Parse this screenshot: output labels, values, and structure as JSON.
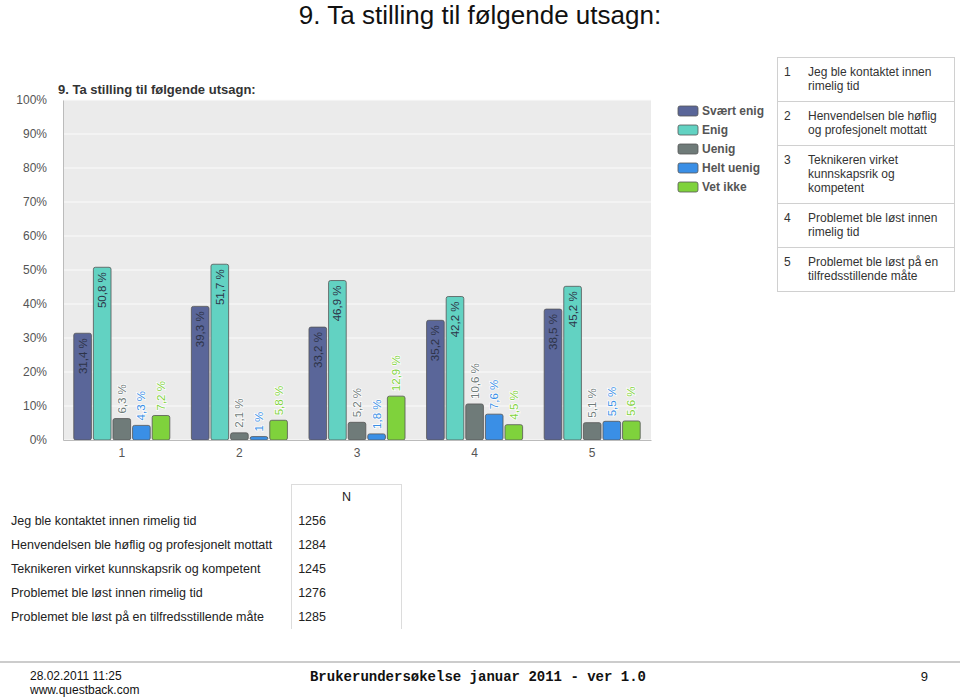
{
  "page": {
    "heading": "9. Ta stilling til følgende utsagn:",
    "items": [
      {
        "number": 1,
        "text": "Jeg ble kontaktet innen rimelig tid"
      },
      {
        "number": 2,
        "text": "Henvendelsen ble høflig og profesjonelt mottatt"
      },
      {
        "number": 3,
        "text": "Teknikeren virket kunnskapsrik og kompetent"
      },
      {
        "number": 4,
        "text": "Problemet ble løst innen rimelig tid"
      },
      {
        "number": 5,
        "text": "Problemet ble løst på en tilfredsstillende måte"
      }
    ],
    "n_table": {
      "header": "N",
      "rows": [
        [
          "Jeg ble kontaktet innen rimelig tid",
          1256
        ],
        [
          "Henvendelsen ble høflig og profesjonelt mottatt",
          1284
        ],
        [
          "Teknikeren virket kunnskapsrik og kompetent",
          1245
        ],
        [
          "Problemet ble løst innen rimelig tid",
          1276
        ],
        [
          "Problemet ble løst på en tilfredsstillende måte",
          1285
        ]
      ]
    },
    "footer": {
      "date": "28.02.2011 11:25",
      "site": "www.questback.com",
      "center": "Brukerundersøkelse januar 2011 - ver 1.0",
      "page_number": 9
    }
  },
  "chart_data": {
    "type": "bar",
    "title": "9. Ta stilling til følgende utsagn:",
    "categories": [
      "1",
      "2",
      "3",
      "4",
      "5"
    ],
    "series": [
      {
        "name": "Svært enig",
        "color": "#5a6699",
        "values": [
          31.4,
          39.3,
          33.2,
          35.2,
          38.5
        ],
        "value_labels": [
          "31,4 %",
          "39,3 %",
          "33,2 %",
          "35,2 %",
          "38,5 %"
        ]
      },
      {
        "name": "Enig",
        "color": "#62d2c2",
        "values": [
          50.8,
          51.7,
          46.9,
          42.2,
          45.2
        ],
        "value_labels": [
          "50,8 %",
          "51,7 %",
          "46,9 %",
          "42,2 %",
          "45,2 %"
        ]
      },
      {
        "name": "Uenig",
        "color": "#6f7b79",
        "values": [
          6.3,
          2.1,
          5.2,
          10.6,
          5.1
        ],
        "value_labels": [
          "6,3 %",
          "2,1 %",
          "5,2 %",
          "10,6 %",
          "5,1 %"
        ]
      },
      {
        "name": "Helt uenig",
        "color": "#3a8fe6",
        "values": [
          4.3,
          1,
          1.8,
          7.6,
          5.5
        ],
        "value_labels": [
          "4,3 %",
          "1 %",
          "1,8 %",
          "7,6 %",
          "5,5 %"
        ]
      },
      {
        "name": "Vet ikke",
        "color": "#7fd23c",
        "values": [
          7.2,
          5.8,
          12.9,
          4.5,
          5.6
        ],
        "value_labels": [
          "7,2 %",
          "5,8 %",
          "12,9 %",
          "4,5 %",
          "5,6 %"
        ]
      }
    ],
    "ylim": [
      0,
      100
    ],
    "yticks": [
      {
        "value": 0,
        "label": "0%"
      },
      {
        "value": 10,
        "label": "10%"
      },
      {
        "value": 20,
        "label": "20%"
      },
      {
        "value": 30,
        "label": "30%"
      },
      {
        "value": 40,
        "label": "40%"
      },
      {
        "value": 50,
        "label": "50%"
      },
      {
        "value": 60,
        "label": "60%"
      },
      {
        "value": 70,
        "label": "70%"
      },
      {
        "value": 80,
        "label": "80%"
      },
      {
        "value": 90,
        "label": "90%"
      },
      {
        "value": 100,
        "label": "100%"
      }
    ],
    "grid": true,
    "legend": "right",
    "data_labels": true
  }
}
